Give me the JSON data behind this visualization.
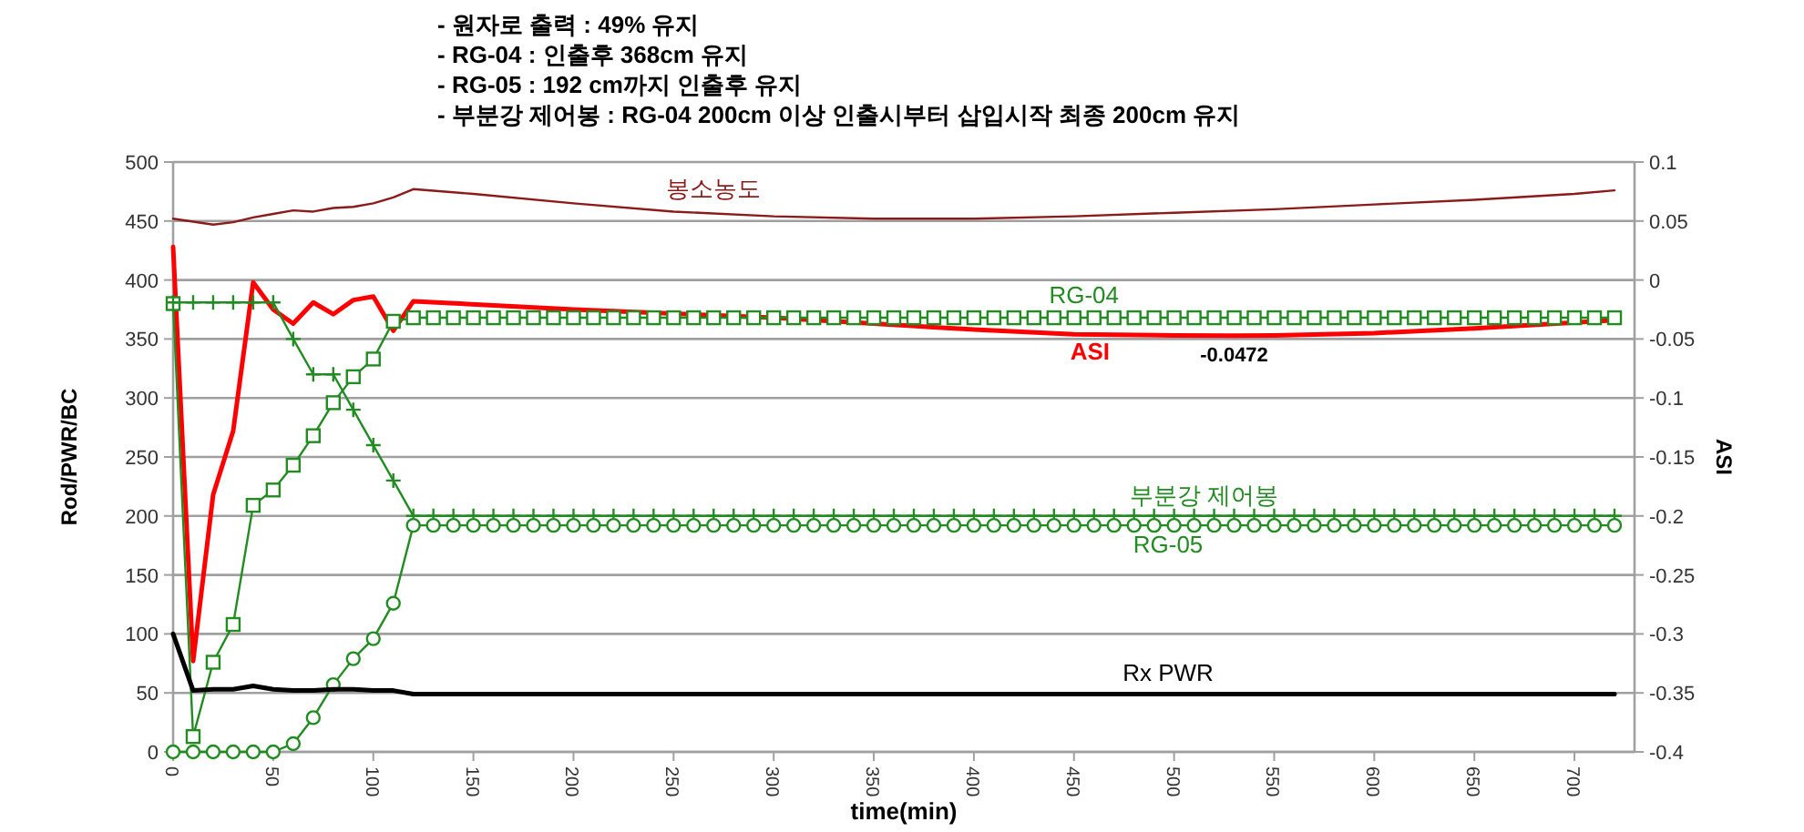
{
  "chart_data": {
    "type": "line",
    "annotations": [
      "- 원자로 출력 : 49% 유지",
      "- RG-04 : 인출후 368cm 유지",
      "- RG-05 : 192 cm까지 인출후 유지",
      "- 부분강 제어봉 : RG-04 200cm 이상 인출시부터  삽입시작  최종 200cm 유지"
    ],
    "xlabel": "time(min)",
    "ylabel": "Rod/PWR/BC",
    "y2label": "ASI",
    "x": [
      0,
      10,
      20,
      30,
      40,
      50,
      60,
      70,
      80,
      90,
      100,
      110,
      120,
      130,
      140,
      150,
      160,
      170,
      180,
      190,
      200,
      210,
      220,
      230,
      240,
      250,
      260,
      270,
      280,
      290,
      300,
      310,
      320,
      330,
      340,
      350,
      360,
      370,
      380,
      390,
      400,
      410,
      420,
      430,
      440,
      450,
      460,
      470,
      480,
      490,
      500,
      510,
      520,
      530,
      540,
      550,
      560,
      570,
      580,
      590,
      600,
      610,
      620,
      630,
      640,
      650,
      660,
      670,
      680,
      690,
      700,
      710,
      720
    ],
    "xlim": [
      0,
      730
    ],
    "xticks": [
      0,
      50,
      100,
      150,
      200,
      250,
      300,
      350,
      400,
      450,
      500,
      550,
      600,
      650,
      700
    ],
    "ylim": [
      0,
      500
    ],
    "yticks": [
      0,
      50,
      100,
      150,
      200,
      250,
      300,
      350,
      400,
      450,
      500
    ],
    "y2lim": [
      -0.4,
      0.1
    ],
    "y2ticks": [
      -0.4,
      -0.35,
      -0.3,
      -0.25,
      -0.2,
      -0.15,
      -0.1,
      -0.05,
      0,
      0.05,
      0.1
    ],
    "grid": "y",
    "series": [
      {
        "name": "봉소농도",
        "color": "#8b1a1a",
        "marker": "none",
        "x": [
          0,
          20,
          30,
          40,
          50,
          60,
          70,
          80,
          90,
          100,
          110,
          120,
          150,
          200,
          250,
          300,
          350,
          400,
          450,
          500,
          550,
          600,
          650,
          700,
          720
        ],
        "values": [
          452,
          447,
          449,
          453,
          456,
          459,
          458,
          461,
          462,
          465,
          470,
          477,
          473,
          465,
          458,
          454,
          452,
          452,
          454,
          457,
          460,
          464,
          468,
          473,
          476
        ]
      },
      {
        "name": "ASI",
        "color": "#ff0000",
        "marker": "none",
        "axis": "y2",
        "x": [
          0,
          10,
          20,
          30,
          40,
          50,
          60,
          70,
          80,
          90,
          100,
          110,
          120,
          200,
          300,
          400,
          450,
          500,
          530,
          550,
          600,
          650,
          720
        ],
        "values": [
          0.028,
          -0.323,
          -0.182,
          -0.128,
          -0.002,
          -0.025,
          -0.037,
          -0.019,
          -0.029,
          -0.017,
          -0.014,
          -0.043,
          -0.018,
          -0.025,
          -0.032,
          -0.042,
          -0.046,
          -0.047,
          -0.0472,
          -0.047,
          -0.045,
          -0.041,
          -0.034
        ],
        "value_labels": [
          null,
          null,
          null,
          null,
          null,
          null,
          null,
          null,
          null,
          null,
          null,
          null,
          null,
          null,
          null,
          null,
          null,
          null,
          "-0.0472",
          null,
          null,
          null,
          null
        ]
      },
      {
        "name": "RG-04",
        "color": "#228b22",
        "marker": "square",
        "values": [
          380,
          13,
          76,
          108,
          209,
          222,
          243,
          268,
          296,
          318,
          333,
          365,
          368,
          368,
          368,
          368,
          368,
          368,
          368,
          368,
          368,
          368,
          368,
          368,
          368,
          368,
          368,
          368,
          368,
          368,
          368,
          368,
          368,
          368,
          368,
          368,
          368,
          368,
          368,
          368,
          368,
          368,
          368,
          368,
          368,
          368,
          368,
          368,
          368,
          368,
          368,
          368,
          368,
          368,
          368,
          368,
          368,
          368,
          368,
          368,
          368,
          368,
          368,
          368,
          368,
          368,
          368,
          368,
          368,
          368,
          368,
          368,
          368
        ]
      },
      {
        "name": "부분강 제어봉",
        "color": "#228b22",
        "marker": "cross",
        "values": [
          381,
          381,
          381,
          381,
          381,
          381,
          350,
          320,
          320,
          290,
          260,
          230,
          200,
          200,
          200,
          200,
          200,
          200,
          200,
          200,
          200,
          200,
          200,
          200,
          200,
          200,
          200,
          200,
          200,
          200,
          200,
          200,
          200,
          200,
          200,
          200,
          200,
          200,
          200,
          200,
          200,
          200,
          200,
          200,
          200,
          200,
          200,
          200,
          200,
          200,
          200,
          200,
          200,
          200,
          200,
          200,
          200,
          200,
          200,
          200,
          200,
          200,
          200,
          200,
          200,
          200,
          200,
          200,
          200,
          200,
          200,
          200,
          200
        ]
      },
      {
        "name": "RG-05",
        "color": "#228b22",
        "marker": "circle",
        "values": [
          0,
          0,
          0,
          0,
          0,
          0,
          7,
          29,
          57,
          79,
          96,
          126,
          192,
          192,
          192,
          192,
          192,
          192,
          192,
          192,
          192,
          192,
          192,
          192,
          192,
          192,
          192,
          192,
          192,
          192,
          192,
          192,
          192,
          192,
          192,
          192,
          192,
          192,
          192,
          192,
          192,
          192,
          192,
          192,
          192,
          192,
          192,
          192,
          192,
          192,
          192,
          192,
          192,
          192,
          192,
          192,
          192,
          192,
          192,
          192,
          192,
          192,
          192,
          192,
          192,
          192,
          192,
          192,
          192,
          192,
          192,
          192,
          192
        ]
      },
      {
        "name": "Rx PWR",
        "color": "#000000",
        "marker": "none",
        "x": [
          0,
          10,
          20,
          30,
          40,
          50,
          60,
          70,
          80,
          90,
          100,
          110,
          120,
          720
        ],
        "values": [
          100,
          52,
          53,
          53,
          56,
          53,
          52,
          52,
          53,
          53,
          52,
          52,
          49,
          49
        ]
      }
    ]
  }
}
